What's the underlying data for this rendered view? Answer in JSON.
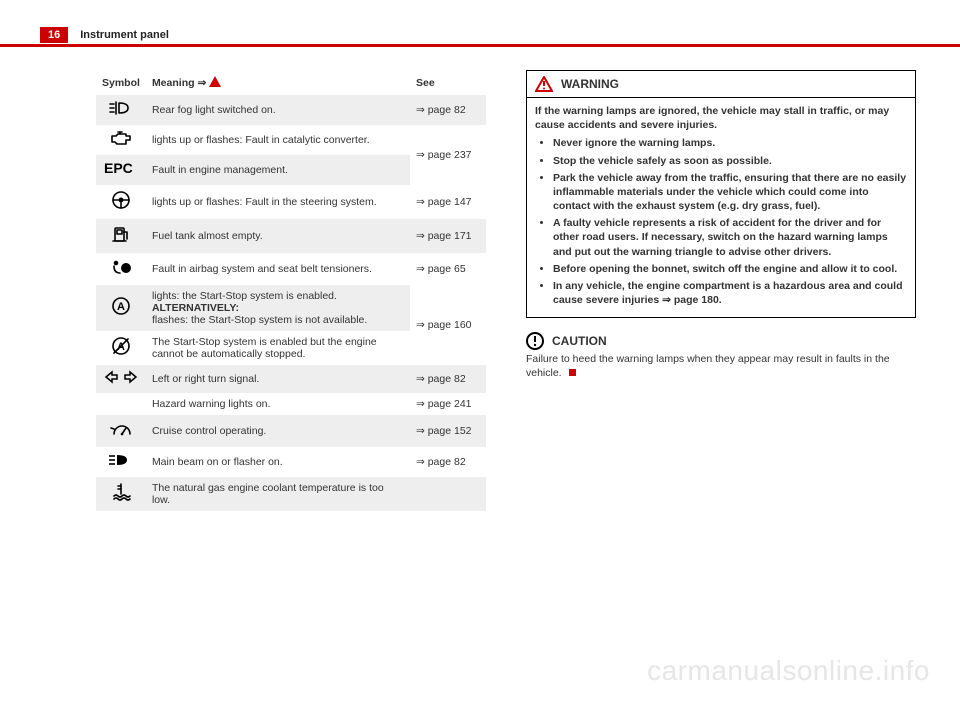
{
  "page": {
    "number": "16",
    "section": "Instrument panel"
  },
  "table": {
    "headers": {
      "symbol": "Symbol",
      "meaning": "Meaning ⇒",
      "see": "See"
    },
    "rows": [
      {
        "icon": "rear-fog",
        "meaning": "Rear fog light switched on.",
        "see": "⇒ page 82",
        "shade": true
      },
      {
        "icon": "engine",
        "meaning": "lights up or flashes: Fault in catalytic converter.",
        "see": "",
        "shade": false
      },
      {
        "icon": "epc",
        "meaning": "Fault in engine management.",
        "see": "⇒ page 237",
        "shade": true,
        "see_rowspan_up": true
      },
      {
        "icon": "steering",
        "meaning": "lights up or flashes: Fault in the steering system.",
        "see": "⇒ page 147",
        "shade": false
      },
      {
        "icon": "fuel",
        "meaning": "Fuel tank almost empty.",
        "see": "⇒ page 171",
        "shade": true
      },
      {
        "icon": "airbag",
        "meaning": "Fault in airbag system and seat belt tensioners.",
        "see": "⇒ page 65",
        "shade": false
      },
      {
        "icon": "circle-a",
        "meaning_html": "lights: the Start-Stop system is enabled. <b>ALTERNATIVELY:</b><br>flashes: the Start-Stop system is not available.",
        "see": "",
        "shade": true
      },
      {
        "icon": "circle-a-slash",
        "meaning": "The Start-Stop system is enabled but the engine cannot be automatically stopped.",
        "see": "⇒ page 160",
        "shade": false,
        "see_rowspan_up": true
      },
      {
        "icon": "arrows",
        "meaning": "Left or right turn signal.",
        "see": "⇒ page 82",
        "shade": true
      },
      {
        "icon": "",
        "meaning": "Hazard warning lights on.",
        "see": "⇒ page 241",
        "shade": false
      },
      {
        "icon": "cruise",
        "meaning": "Cruise control operating.",
        "see": "⇒ page 152",
        "shade": true
      },
      {
        "icon": "highbeam",
        "meaning": "Main beam on or flasher on.",
        "see": "⇒ page 82",
        "shade": false
      },
      {
        "icon": "temp",
        "meaning": "The natural gas engine coolant temperature is too low.",
        "see": "",
        "shade": true
      }
    ]
  },
  "warning": {
    "title": "WARNING",
    "intro": "If the warning lamps are ignored, the vehicle may stall in traffic, or may cause accidents and severe injuries.",
    "bullets": [
      "Never ignore the warning lamps.",
      "Stop the vehicle safely as soon as possible.",
      "Park the vehicle away from the traffic, ensuring that there are no easily inflammable materials under the vehicle which could come into contact with the exhaust system (e.g. dry grass, fuel).",
      "A faulty vehicle represents a risk of accident for the driver and for other road users. If necessary, switch on the hazard warning lamps and put out the warning triangle to advise other drivers.",
      "Before opening the bonnet, switch off the engine and allow it to cool.",
      "In any vehicle, the engine compartment is a hazardous area and could cause severe injuries ⇒ page 180."
    ]
  },
  "caution": {
    "title": "CAUTION",
    "body": "Failure to heed the warning lamps when they appear may result in faults in the vehicle."
  },
  "watermark": "carmanualsonline.info",
  "colors": {
    "accent": "#cc0000",
    "shade": "#eeeeee",
    "text": "#333333",
    "watermark": "#e6e6e6"
  }
}
